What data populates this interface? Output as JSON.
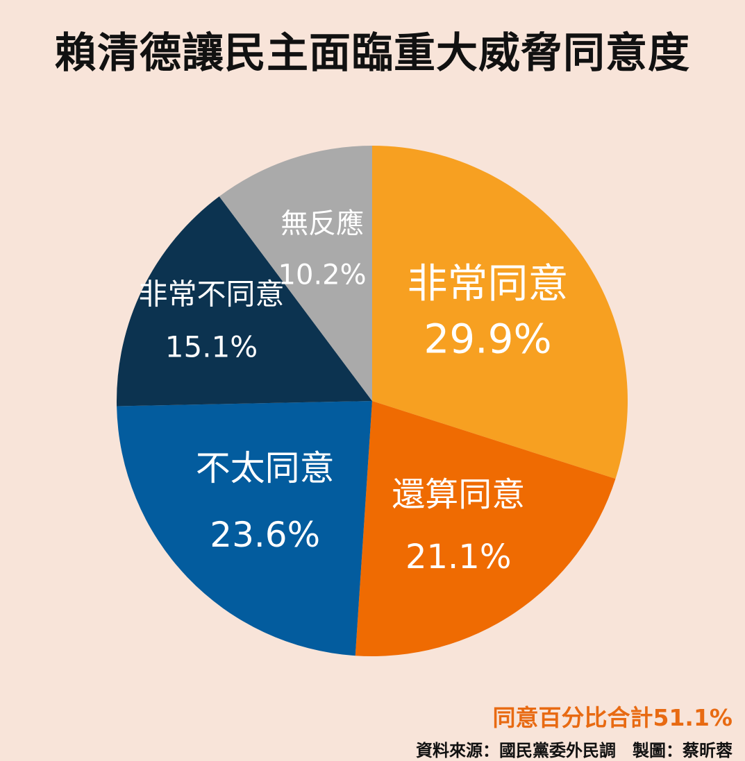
{
  "title": "賴清德讓民主面臨重大威脅同意度",
  "chart_data": {
    "type": "pie",
    "title": "賴清德讓民主面臨重大威脅同意度",
    "slices": [
      {
        "label": "非常同意",
        "value": 29.9,
        "value_label": "29.9%",
        "color": "#f7a021"
      },
      {
        "label": "還算同意",
        "value": 21.1,
        "value_label": "21.1%",
        "color": "#ef6b02"
      },
      {
        "label": "不太同意",
        "value": 23.6,
        "value_label": "23.6%",
        "color": "#035c9e"
      },
      {
        "label": "非常不同意",
        "value": 15.1,
        "value_label": "15.1%",
        "color": "#0c3350"
      },
      {
        "label": "無反應",
        "value": 10.2,
        "value_label": "10.2%",
        "color": "#aaaaaa"
      }
    ]
  },
  "note": "同意百分比合計51.1%",
  "source": "資料來源：國民黨委外民調　製圖：蔡昕蓉",
  "colors": {
    "background": "#f8e4d9",
    "label_text": "#ffffff",
    "note_text": "#e86a12",
    "title_text": "#111111"
  }
}
